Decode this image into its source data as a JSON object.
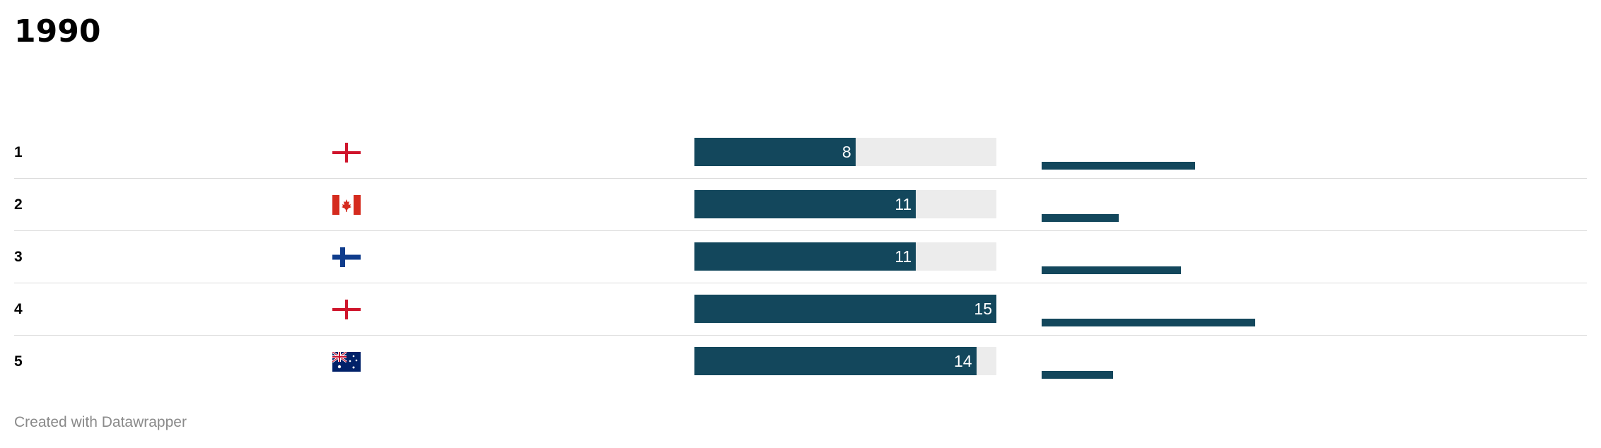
{
  "title": "1990",
  "credit": "Created with Datawrapper",
  "colors": {
    "bar": "#13475c",
    "track": "#ececec",
    "divider": "#dcdcdc",
    "credit": "#8a8a8a"
  },
  "chart_data": {
    "type": "table",
    "title": "1990",
    "bar_max": 15,
    "spark_max": 15,
    "rows": [
      {
        "rank": "1",
        "flag": "england-flag-icon",
        "value": 8,
        "value_label": "8",
        "spark": 10.8
      },
      {
        "rank": "2",
        "flag": "canada-flag-icon",
        "value": 11,
        "value_label": "11",
        "spark": 5.4
      },
      {
        "rank": "3",
        "flag": "finland-flag-icon",
        "value": 11,
        "value_label": "11",
        "spark": 9.8
      },
      {
        "rank": "4",
        "flag": "england-flag-icon",
        "value": 15,
        "value_label": "15",
        "spark": 15
      },
      {
        "rank": "5",
        "flag": "australia-flag-icon",
        "value": 14,
        "value_label": "14",
        "spark": 5.0
      }
    ]
  }
}
